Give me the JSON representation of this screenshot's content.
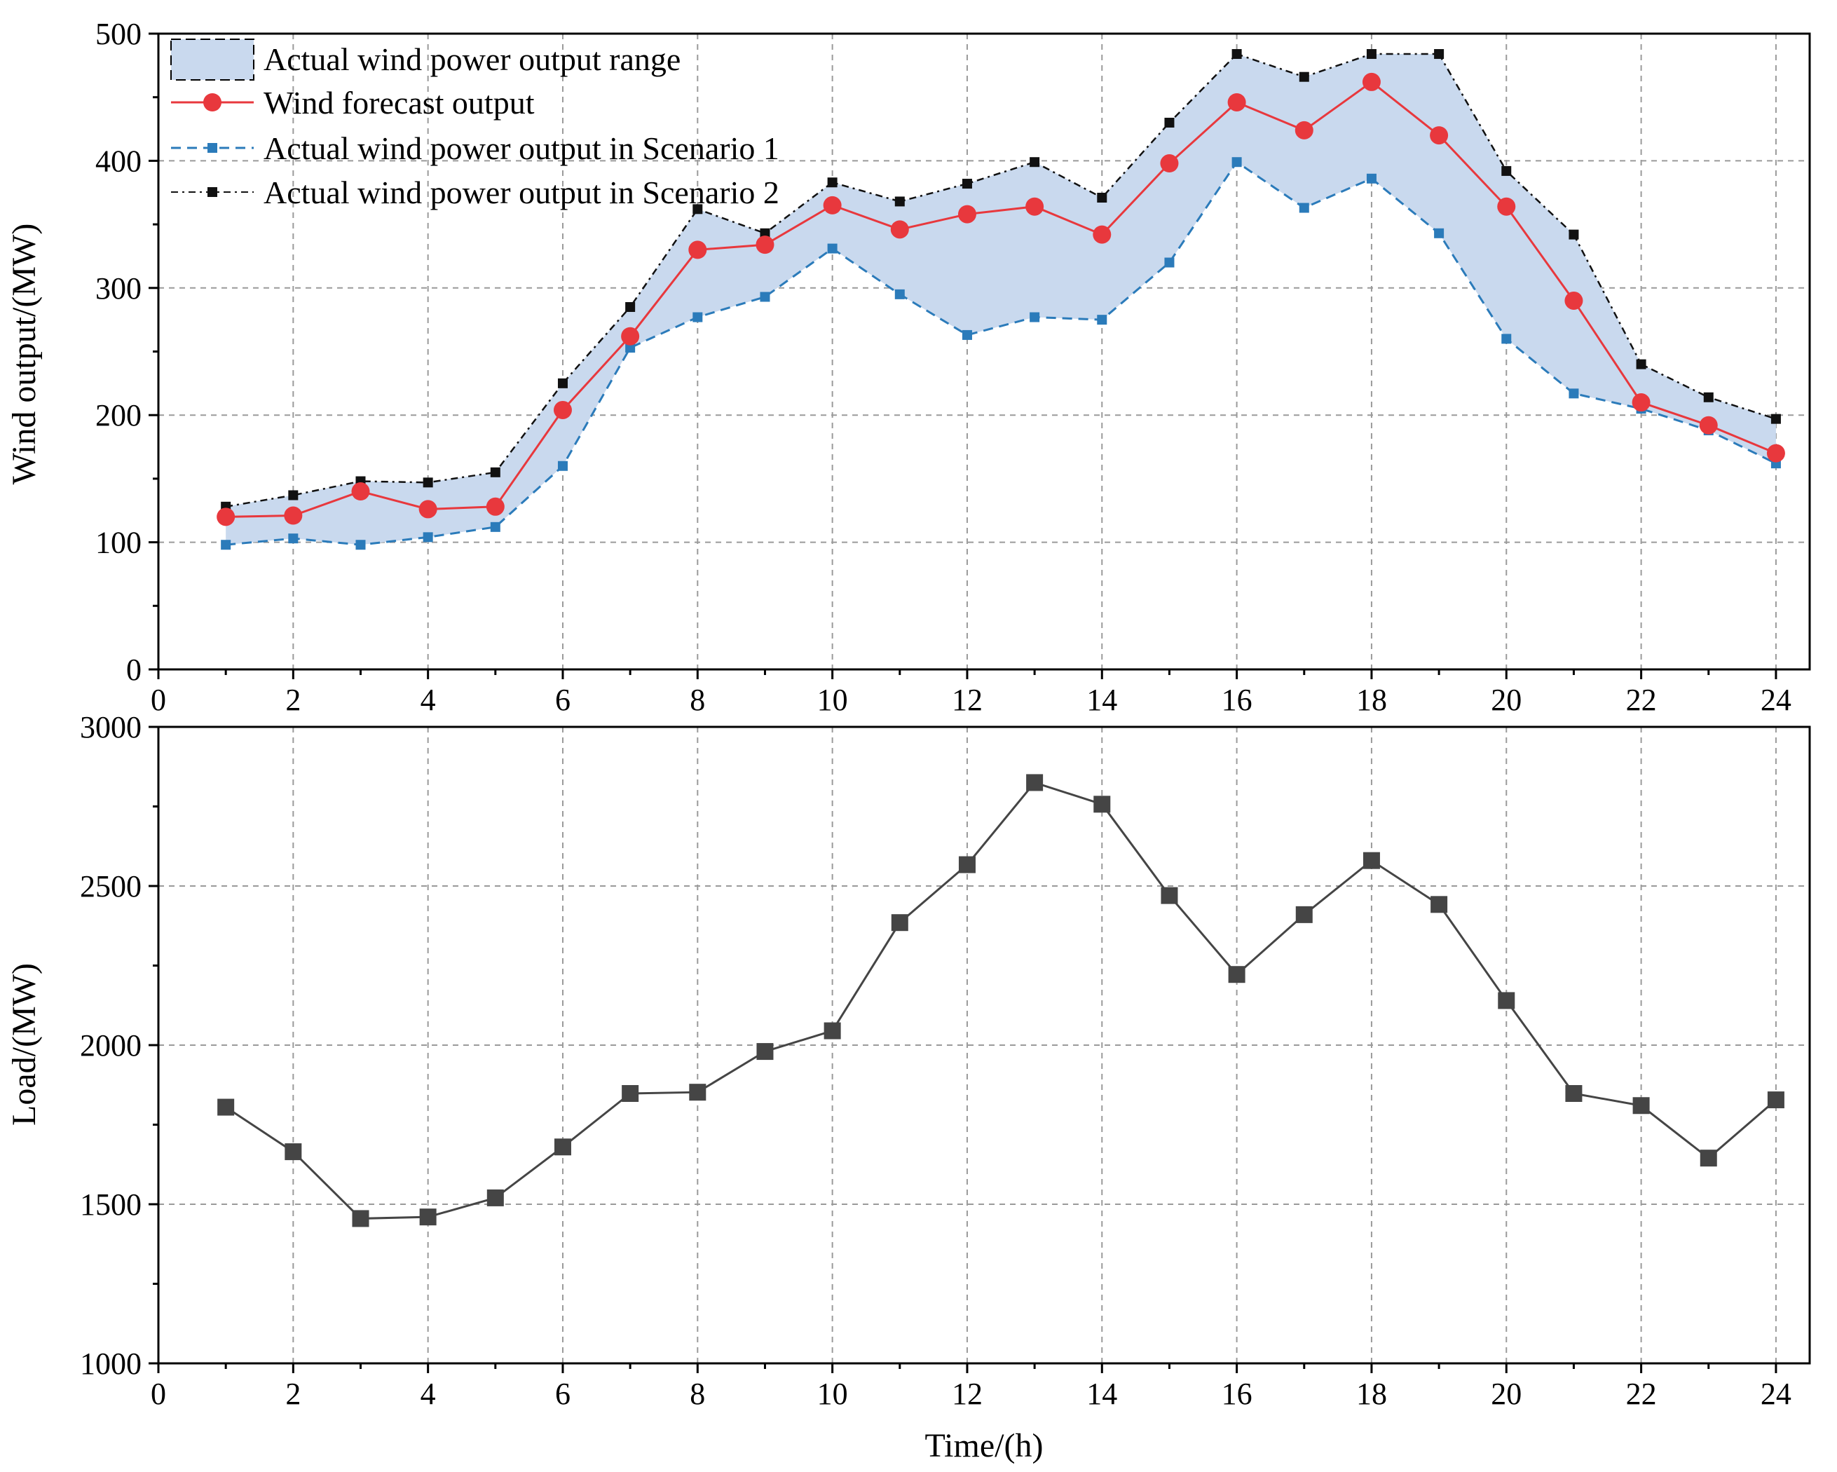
{
  "colors": {
    "forecast": "#e8383d",
    "scenario1": "#2b7bba",
    "scenario2": "#111111",
    "range_fill": "#c9d9ee",
    "load": "#454545",
    "grid": "#9a9a9a"
  },
  "chart_data": [
    {
      "type": "line",
      "title": "",
      "xlabel": "",
      "ylabel": "Wind output/(MW)",
      "xlim": [
        0,
        24.5
      ],
      "ylim": [
        0,
        500
      ],
      "x_ticks": [
        "0",
        "2",
        "4",
        "6",
        "8",
        "10",
        "12",
        "14",
        "16",
        "18",
        "20",
        "22",
        "24"
      ],
      "y_ticks": [
        "0",
        "100",
        "200",
        "300",
        "400",
        "500"
      ],
      "grid": true,
      "legend_position": "top-left",
      "x": [
        1,
        2,
        3,
        4,
        5,
        6,
        7,
        8,
        9,
        10,
        11,
        12,
        13,
        14,
        15,
        16,
        17,
        18,
        19,
        20,
        21,
        22,
        23,
        24
      ],
      "range_label": "Actual wind power output range",
      "series": [
        {
          "name": "Wind  forecast output",
          "values": [
            120,
            121,
            140,
            126,
            128,
            204,
            262,
            330,
            334,
            365,
            346,
            358,
            364,
            342,
            398,
            446,
            424,
            462,
            420,
            364,
            290,
            210,
            192,
            170
          ]
        },
        {
          "name": "Actual wind power output in Scenario 1",
          "values": [
            98,
            103,
            98,
            104,
            112,
            160,
            253,
            277,
            293,
            331,
            295,
            263,
            277,
            275,
            320,
            399,
            363,
            386,
            343,
            260,
            217,
            205,
            188,
            162
          ]
        },
        {
          "name": "Actual wind power output in Scenario 2",
          "values": [
            128,
            137,
            148,
            147,
            155,
            225,
            285,
            362,
            343,
            383,
            368,
            382,
            399,
            371,
            430,
            484,
            466,
            484,
            484,
            392,
            342,
            240,
            214,
            197
          ]
        }
      ]
    },
    {
      "type": "line",
      "title": "",
      "xlabel": "Time/(h)",
      "ylabel": "Load/(MW)",
      "xlim": [
        0,
        24.5
      ],
      "ylim": [
        1000,
        3000
      ],
      "x_ticks": [
        "0",
        "2",
        "4",
        "6",
        "8",
        "10",
        "12",
        "14",
        "16",
        "18",
        "20",
        "22",
        "24"
      ],
      "y_ticks": [
        "1000",
        "1500",
        "2000",
        "2500",
        "3000"
      ],
      "grid": true,
      "x": [
        1,
        2,
        3,
        4,
        5,
        6,
        7,
        8,
        9,
        10,
        11,
        12,
        13,
        14,
        15,
        16,
        17,
        18,
        19,
        20,
        21,
        22,
        23,
        24
      ],
      "series": [
        {
          "name": "Load",
          "values": [
            1805,
            1665,
            1455,
            1460,
            1520,
            1680,
            1848,
            1852,
            1980,
            2045,
            2385,
            2567,
            2825,
            2757,
            2470,
            2222,
            2410,
            2580,
            2442,
            2140,
            1848,
            1810,
            1645,
            1828
          ]
        }
      ]
    }
  ]
}
